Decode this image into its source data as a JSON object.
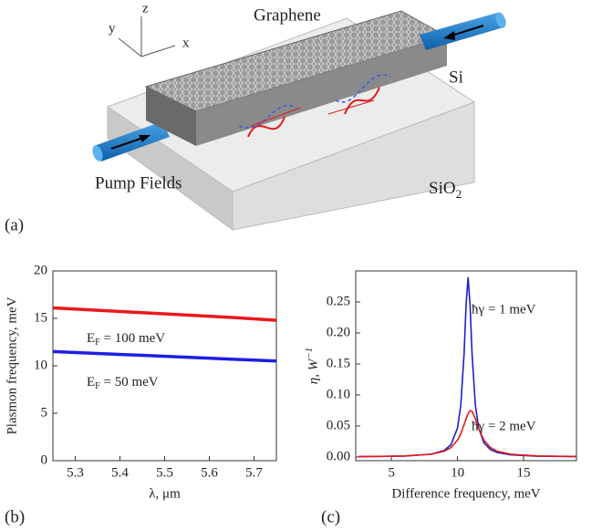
{
  "diagram": {
    "axis_z": "z",
    "axis_y": "y",
    "axis_x": "x",
    "graphene": "Graphene",
    "si": "Si",
    "pump": "Pump Fields",
    "sio2": {
      "main": "SiO",
      "sub": "2"
    },
    "panel": "(a)"
  },
  "chart_data": [
    {
      "type": "line",
      "panel": "(b)",
      "y_label": "Plasmon frequency, meV",
      "x_label": "λ, μm",
      "x": [
        5.25,
        5.35,
        5.45,
        5.55,
        5.65,
        5.75
      ],
      "series": [
        {
          "color": "#e8191b",
          "values": [
            16.1,
            15.85,
            15.6,
            15.35,
            15.1,
            14.8
          ]
        },
        {
          "color": "#1f1fe0",
          "values": [
            11.5,
            11.3,
            11.1,
            10.9,
            10.7,
            10.5
          ]
        }
      ],
      "xlim": [
        5.25,
        5.75
      ],
      "xticks": [
        5.3,
        5.4,
        5.5,
        5.6,
        5.7
      ],
      "ylim": [
        0,
        20
      ],
      "yticks": [
        0,
        5,
        10,
        15,
        20
      ],
      "annotations": [
        {
          "main": "E",
          "sub": "F",
          "rest": " = 100 meV"
        },
        {
          "main": "E",
          "sub": "F",
          "rest": " = 50 meV"
        }
      ]
    },
    {
      "type": "line",
      "panel": "(c)",
      "y_label": {
        "main": "η,  W",
        "sup": "−1"
      },
      "x_label": "Difference frequency, meV",
      "x": [
        2.5,
        4,
        6,
        8,
        9,
        9.5,
        10,
        10.25,
        10.5,
        10.65,
        10.8,
        10.95,
        11.1,
        11.35,
        11.6,
        12,
        12.5,
        13,
        14,
        16,
        19
      ],
      "series": [
        {
          "color": "#1f1fc8",
          "values": [
            0.0005,
            0.0008,
            0.0015,
            0.0045,
            0.0106,
            0.0196,
            0.0466,
            0.0836,
            0.167,
            0.245,
            0.29,
            0.245,
            0.167,
            0.0836,
            0.0466,
            0.0227,
            0.0118,
            0.0072,
            0.0034,
            0.0013,
            0.0005
          ]
        },
        {
          "color": "#e01b1b",
          "values": [
            0.0006,
            0.0009,
            0.0017,
            0.0044,
            0.0092,
            0.015,
            0.027,
            0.0375,
            0.052,
            0.0616,
            0.07,
            0.0747,
            0.0737,
            0.0616,
            0.0457,
            0.027,
            0.015,
            0.0092,
            0.0044,
            0.0017,
            0.0007
          ]
        }
      ],
      "xlim": [
        2.3,
        19
      ],
      "xticks": [
        5,
        10,
        15
      ],
      "ylim": [
        -0.006,
        0.3
      ],
      "yticks": [
        {
          "value": 0,
          "label": "0.00"
        },
        {
          "value": 0.05,
          "label": "0.05"
        },
        {
          "value": 0.1,
          "label": "0.10"
        },
        {
          "value": 0.15,
          "label": "0.15"
        },
        {
          "value": 0.2,
          "label": "0.20"
        },
        {
          "value": 0.25,
          "label": "0.25"
        }
      ],
      "annotations": [
        "ħγ = 1 meV",
        "ħγ = 2 meV"
      ]
    }
  ]
}
